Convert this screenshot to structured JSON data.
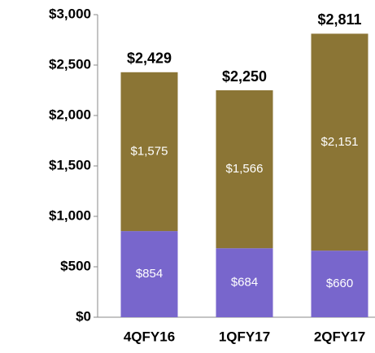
{
  "chart_data": {
    "type": "bar",
    "stacked": true,
    "categories": [
      "4QFY16",
      "1QFY17",
      "2QFY17"
    ],
    "series": [
      {
        "color": "#7866cc",
        "values": [
          854,
          684,
          660
        ],
        "value_labels": [
          "$854",
          "$684",
          "$660"
        ]
      },
      {
        "color": "#8b7535",
        "values": [
          1575,
          1566,
          2151
        ],
        "value_labels": [
          "$1,575",
          "$1,566",
          "$2,151"
        ]
      }
    ],
    "totals": [
      2429,
      2250,
      2811
    ],
    "total_labels": [
      "$2,429",
      "$2,250",
      "$2,811"
    ],
    "ylim": [
      0,
      3000
    ],
    "yticks": [
      {
        "value": 0,
        "label": "$0"
      },
      {
        "value": 500,
        "label": "$500"
      },
      {
        "value": 1000,
        "label": "$1,000"
      },
      {
        "value": 1500,
        "label": "$1,500"
      },
      {
        "value": 2000,
        "label": "$2,000"
      },
      {
        "value": 2500,
        "label": "$2,500"
      },
      {
        "value": 3000,
        "label": "$3,000"
      }
    ],
    "grid": false
  }
}
